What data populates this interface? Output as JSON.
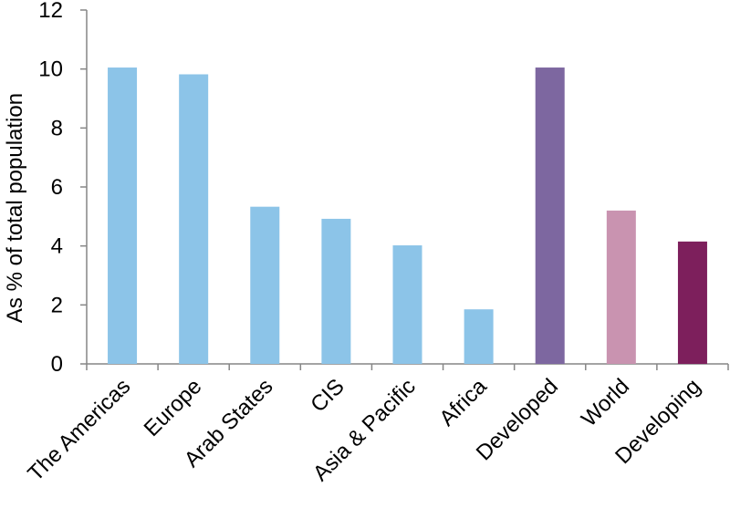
{
  "chart_data": {
    "type": "bar",
    "title": "",
    "xlabel": "",
    "ylabel": "As % of total population",
    "ylim": [
      0,
      12
    ],
    "yticks": [
      0,
      2,
      4,
      6,
      8,
      10,
      12
    ],
    "grid": false,
    "legend": "none",
    "categories": [
      "The Americas",
      "Europe",
      "Arab States",
      "CIS",
      "Asia & Pacific",
      "Africa",
      "Developed",
      "World",
      "Developing"
    ],
    "values": [
      10.05,
      9.82,
      5.33,
      4.92,
      4.02,
      1.85,
      10.05,
      5.2,
      4.15
    ],
    "colors": [
      "#8cc4e8",
      "#8cc4e8",
      "#8cc4e8",
      "#8cc4e8",
      "#8cc4e8",
      "#8cc4e8",
      "#7d67a0",
      "#c993b0",
      "#7d1f5c"
    ],
    "axis_color": "#868686"
  }
}
